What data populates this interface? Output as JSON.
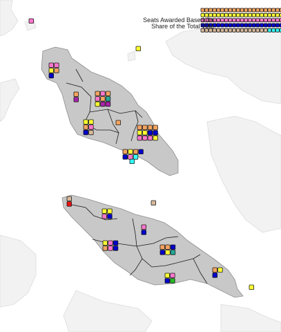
{
  "legend": {
    "title_line1": "Seats Awarded Based On",
    "title_line2": "Share of the Total Vote",
    "rows": [
      [
        "#f4a460",
        "#f4a460",
        "#f4a460",
        "#f4a460",
        "#f4a460",
        "#f4a460",
        "#f4a460",
        "#f4a460",
        "#f4a460",
        "#f4a460",
        "#f4a460",
        "#f4a460",
        "#f4a460",
        "#f4a460",
        "#f4a460",
        "#f4a460",
        "#f4a460",
        "#f4a460",
        "#f4a460",
        "#f4a460",
        "#f4a460",
        "#f4a460",
        "#f4a460",
        "#f4a460",
        "#f4a460",
        "#f4a460",
        "#ffff33",
        "#ffff33",
        "#ffff33",
        "#ffff33",
        "#66dd66",
        "#66dd66",
        "#66dd66",
        "#66dd66",
        "#66dd66"
      ],
      [
        "#ffff33",
        "#ffff33",
        "#ffff33",
        "#ffff33",
        "#ffff33",
        "#ffff33",
        "#ffff33",
        "#ffff33",
        "#ffff33",
        "#ffff33",
        "#ffff33",
        "#ffff33",
        "#ffff33",
        "#ffff33",
        "#ffff33",
        "#ffff33",
        "#ffff33",
        "#ffff33",
        "#ffff33",
        "#ffff33",
        "#ffff33",
        "#ffff33",
        "#ffff33",
        "#ffff33",
        "#ffff33",
        "#ffff33",
        "#ffff33",
        "#ffff33",
        "#ffff33",
        "#ffff33",
        "#ee1111",
        "#ee1111",
        "#ee1111",
        "#ee1111",
        "#ee1111"
      ],
      [
        "#ff77cc",
        "#ff77cc",
        "#ff77cc",
        "#ff77cc",
        "#ff77cc",
        "#ff77cc",
        "#ff77cc",
        "#ff77cc",
        "#ff77cc",
        "#ff77cc",
        "#ff77cc",
        "#ff77cc",
        "#ff77cc",
        "#ff77cc",
        "#ff77cc",
        "#ff77cc",
        "#ff77cc",
        "#ff77cc",
        "#ff77cc",
        "#ff77cc",
        "#ff77cc",
        "#ff77cc",
        "#ff77cc",
        "#ff77cc",
        "#ff77cc",
        "#ff77cc",
        "#ff77cc",
        "#ff77cc",
        "#aa22aa",
        "#aa22aa",
        "#aa22aa",
        "#aa22aa",
        "#aa22aa",
        "#aa22aa",
        "#aa22aa"
      ],
      [
        "#0000cc",
        "#0000cc",
        "#0000cc",
        "#0000cc",
        "#0000cc",
        "#0000cc",
        "#0000cc",
        "#0000cc",
        "#0000cc",
        "#0000cc",
        "#0000cc",
        "#0000cc",
        "#0000cc",
        "#0000cc",
        "#0000cc",
        "#0000cc",
        "#0000cc",
        "#0000cc",
        "#0000cc",
        "#0000cc",
        "#0000cc",
        "#0000cc",
        "#0000cc",
        "#0000cc",
        "#0000cc",
        "#0000cc",
        "#0000cc",
        "#0000cc",
        "#0000cc",
        "#0000cc",
        "#22aa99",
        "#22aa99",
        "#22aa99",
        "#22aa99",
        "#22aa99"
      ],
      [
        "#d9b99b",
        "#d9b99b",
        "#d9b99b",
        "#d9b99b",
        "#d9b99b",
        "#d9b99b",
        "#d9b99b",
        "#d9b99b",
        "#d9b99b",
        "#d9b99b",
        "#d9b99b",
        "#d9b99b",
        "#d9b99b",
        "#d9b99b",
        "#d9b99b",
        "#d9b99b",
        "#d9b99b",
        "#33ffff",
        "#33ffff",
        "#33ffff",
        "#33ffff",
        "#33ffff",
        "#33ffff",
        "#33ffff",
        "#33ffff",
        "#33ffff",
        "#33ffff",
        "#33ffff",
        "#33ffff",
        "#22bb22",
        "#22bb22",
        "#22bb22",
        "#22bb22",
        "#22bb22",
        "#22bb22"
      ]
    ]
  },
  "seat_clusters": [
    [
      "#ff77cc"
    ],
    [
      "#ffff33"
    ],
    [
      "#ff77cc",
      "#ff77cc",
      "#ffff33",
      "#f4a460",
      "#0000cc"
    ],
    [
      "#f4a460",
      "#aa22aa"
    ],
    [
      "#f4a460",
      "#ff77cc",
      "#f4a460",
      "#ff77cc",
      "#f4a460",
      "#22aa99",
      "#ffff33",
      "#aa22aa",
      "#aa22aa"
    ],
    [
      "#ffff33",
      "#ffff33",
      "#f4a460",
      "#ff77cc",
      "#0000cc",
      "#d9b99b"
    ],
    [
      "#f4a460"
    ],
    [
      "#f4a460",
      "#f4a460",
      "#f4a460",
      "#f4a460",
      "#ffff33",
      "#ffff33",
      "#0000cc",
      "#0000cc",
      "#ff77cc",
      "#ff77cc",
      "#ff77cc",
      "#ffff33"
    ],
    [
      "#33ffff"
    ],
    [
      "#f4a460",
      "#ffff33",
      "#f4a460",
      "#0000cc",
      "#0000cc",
      "#ff77cc",
      "#33ffff"
    ],
    [
      "#d9b99b",
      "#ee1111"
    ],
    [
      "#d9b99b"
    ],
    [
      "#ffff33",
      "#ffff33",
      "#ff77cc",
      "#0000cc"
    ],
    [
      "#ff77cc",
      "#0000cc"
    ],
    [
      "#ffff33",
      "#ff77cc",
      "#0000cc",
      "#f4a460",
      "#ff77cc",
      "#0000cc"
    ],
    [
      "#f4a460",
      "#f4a460",
      "#0000cc",
      "#0000cc",
      "#ffff33",
      "#22aa99"
    ],
    [
      "#f4a460",
      "#ffff33",
      "#0000cc"
    ],
    [
      "#ffff33",
      "#ff77cc",
      "#0000cc",
      "#22bb22"
    ],
    [
      "#ffff33"
    ]
  ]
}
